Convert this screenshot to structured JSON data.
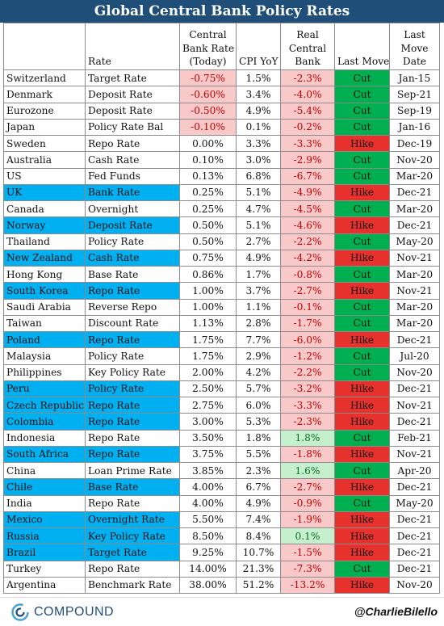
{
  "title": "Global Central Bank Policy Rates",
  "headers": {
    "rate": "Rate",
    "cb_rate_line1": "Central",
    "cb_rate_line2": "Bank Rate",
    "cb_rate_line3": "(Today)",
    "cpi": "CPI YoY",
    "real_line1": "Real",
    "real_line2": "Central",
    "real_line3": "Bank",
    "last_move": "Last Move",
    "date_line1": "Last",
    "date_line2": "Move",
    "date_line3": "Date"
  },
  "colors": {
    "title_bg": "#1f4e79",
    "highlight_row": "#00b0f0",
    "negative_fill": "#f9c8c8",
    "negative_text": "#c00000",
    "positive_fill": "#c6efce",
    "positive_text": "#0b6e24",
    "cut": "#00b050",
    "hike": "#e6312d"
  },
  "rows": [
    {
      "country": "Switzerland",
      "rate": "Target Rate",
      "cb": "-0.75%",
      "cpi": "1.5%",
      "real": "-2.3%",
      "move": "Cut",
      "date": "Jan-15",
      "hl": false
    },
    {
      "country": "Denmark",
      "rate": "Deposit Rate",
      "cb": "-0.60%",
      "cpi": "3.4%",
      "real": "-4.0%",
      "move": "Cut",
      "date": "Sep-21",
      "hl": false
    },
    {
      "country": "Eurozone",
      "rate": "Deposit Rate",
      "cb": "-0.50%",
      "cpi": "4.9%",
      "real": "-5.4%",
      "move": "Cut",
      "date": "Sep-19",
      "hl": false
    },
    {
      "country": "Japan",
      "rate": "Policy Rate Bal",
      "cb": "-0.10%",
      "cpi": "0.1%",
      "real": "-0.2%",
      "move": "Cut",
      "date": "Jan-16",
      "hl": false
    },
    {
      "country": "Sweden",
      "rate": "Repo Rate",
      "cb": "0.00%",
      "cpi": "3.3%",
      "real": "-3.3%",
      "move": "Hike",
      "date": "Dec-19",
      "hl": false
    },
    {
      "country": "Australia",
      "rate": "Cash Rate",
      "cb": "0.10%",
      "cpi": "3.0%",
      "real": "-2.9%",
      "move": "Cut",
      "date": "Nov-20",
      "hl": false
    },
    {
      "country": "US",
      "rate": "Fed Funds",
      "cb": "0.13%",
      "cpi": "6.8%",
      "real": "-6.7%",
      "move": "Cut",
      "date": "Mar-20",
      "hl": false
    },
    {
      "country": "UK",
      "rate": "Bank Rate",
      "cb": "0.25%",
      "cpi": "5.1%",
      "real": "-4.9%",
      "move": "Hike",
      "date": "Dec-21",
      "hl": true
    },
    {
      "country": "Canada",
      "rate": "Overnight",
      "cb": "0.25%",
      "cpi": "4.7%",
      "real": "-4.5%",
      "move": "Cut",
      "date": "Mar-20",
      "hl": false
    },
    {
      "country": "Norway",
      "rate": "Deposit Rate",
      "cb": "0.50%",
      "cpi": "5.1%",
      "real": "-4.6%",
      "move": "Hike",
      "date": "Dec-21",
      "hl": true
    },
    {
      "country": "Thailand",
      "rate": "Policy Rate",
      "cb": "0.50%",
      "cpi": "2.7%",
      "real": "-2.2%",
      "move": "Cut",
      "date": "May-20",
      "hl": false
    },
    {
      "country": "New Zealand",
      "rate": "Cash Rate",
      "cb": "0.75%",
      "cpi": "4.9%",
      "real": "-4.2%",
      "move": "Hike",
      "date": "Nov-21",
      "hl": true
    },
    {
      "country": "Hong Kong",
      "rate": "Base Rate",
      "cb": "0.86%",
      "cpi": "1.7%",
      "real": "-0.8%",
      "move": "Cut",
      "date": "Mar-20",
      "hl": false
    },
    {
      "country": "South Korea",
      "rate": "Repo Rate",
      "cb": "1.00%",
      "cpi": "3.7%",
      "real": "-2.7%",
      "move": "Hike",
      "date": "Nov-21",
      "hl": true
    },
    {
      "country": "Saudi Arabia",
      "rate": "Reverse Repo",
      "cb": "1.00%",
      "cpi": "1.1%",
      "real": "-0.1%",
      "move": "Cut",
      "date": "Mar-20",
      "hl": false
    },
    {
      "country": "Taiwan",
      "rate": "Discount Rate",
      "cb": "1.13%",
      "cpi": "2.8%",
      "real": "-1.7%",
      "move": "Cut",
      "date": "Mar-20",
      "hl": false
    },
    {
      "country": "Poland",
      "rate": "Repo Rate",
      "cb": "1.75%",
      "cpi": "7.7%",
      "real": "-6.0%",
      "move": "Hike",
      "date": "Dec-21",
      "hl": true
    },
    {
      "country": "Malaysia",
      "rate": "Policy Rate",
      "cb": "1.75%",
      "cpi": "2.9%",
      "real": "-1.2%",
      "move": "Cut",
      "date": "Jul-20",
      "hl": false
    },
    {
      "country": "Philippines",
      "rate": "Key Policy Rate",
      "cb": "2.00%",
      "cpi": "4.2%",
      "real": "-2.2%",
      "move": "Cut",
      "date": "Nov-20",
      "hl": false
    },
    {
      "country": "Peru",
      "rate": "Policy Rate",
      "cb": "2.50%",
      "cpi": "5.7%",
      "real": "-3.2%",
      "move": "Hike",
      "date": "Dec-21",
      "hl": true
    },
    {
      "country": "Czech Republic",
      "rate": "Repo Rate",
      "cb": "2.75%",
      "cpi": "6.0%",
      "real": "-3.3%",
      "move": "Hike",
      "date": "Nov-21",
      "hl": true
    },
    {
      "country": "Colombia",
      "rate": "Repo Rate",
      "cb": "3.00%",
      "cpi": "5.3%",
      "real": "-2.3%",
      "move": "Hike",
      "date": "Dec-21",
      "hl": true
    },
    {
      "country": "Indonesia",
      "rate": "Repo Rate",
      "cb": "3.50%",
      "cpi": "1.8%",
      "real": "1.8%",
      "move": "Cut",
      "date": "Feb-21",
      "hl": false
    },
    {
      "country": "South Africa",
      "rate": "Repo Rate",
      "cb": "3.75%",
      "cpi": "5.5%",
      "real": "-1.8%",
      "move": "Hike",
      "date": "Nov-21",
      "hl": true
    },
    {
      "country": "China",
      "rate": "Loan Prime Rate",
      "cb": "3.85%",
      "cpi": "2.3%",
      "real": "1.6%",
      "move": "Cut",
      "date": "Apr-20",
      "hl": false
    },
    {
      "country": "Chile",
      "rate": "Base Rate",
      "cb": "4.00%",
      "cpi": "6.7%",
      "real": "-2.7%",
      "move": "Hike",
      "date": "Dec-21",
      "hl": true
    },
    {
      "country": "India",
      "rate": "Repo Rate",
      "cb": "4.00%",
      "cpi": "4.9%",
      "real": "-0.9%",
      "move": "Cut",
      "date": "May-20",
      "hl": false
    },
    {
      "country": "Mexico",
      "rate": "Overnight Rate",
      "cb": "5.50%",
      "cpi": "7.4%",
      "real": "-1.9%",
      "move": "Hike",
      "date": "Dec-21",
      "hl": true
    },
    {
      "country": "Russia",
      "rate": "Key Policy Rate",
      "cb": "8.50%",
      "cpi": "8.4%",
      "real": "0.1%",
      "move": "Hike",
      "date": "Dec-21",
      "hl": true
    },
    {
      "country": "Brazil",
      "rate": "Target Rate",
      "cb": "9.25%",
      "cpi": "10.7%",
      "real": "-1.5%",
      "move": "Hike",
      "date": "Dec-21",
      "hl": true
    },
    {
      "country": "Turkey",
      "rate": "Repo Rate",
      "cb": "14.00%",
      "cpi": "21.3%",
      "real": "-7.3%",
      "move": "Cut",
      "date": "Dec-21",
      "hl": false
    },
    {
      "country": "Argentina",
      "rate": "Benchmark Rate",
      "cb": "38.00%",
      "cpi": "51.2%",
      "real": "-13.2%",
      "move": "Hike",
      "date": "Nov-20",
      "hl": false
    }
  ],
  "footer": {
    "logo_text": "COMPOUND",
    "logo_icon": "compound-logo-icon",
    "handle": "@CharlieBilello"
  }
}
